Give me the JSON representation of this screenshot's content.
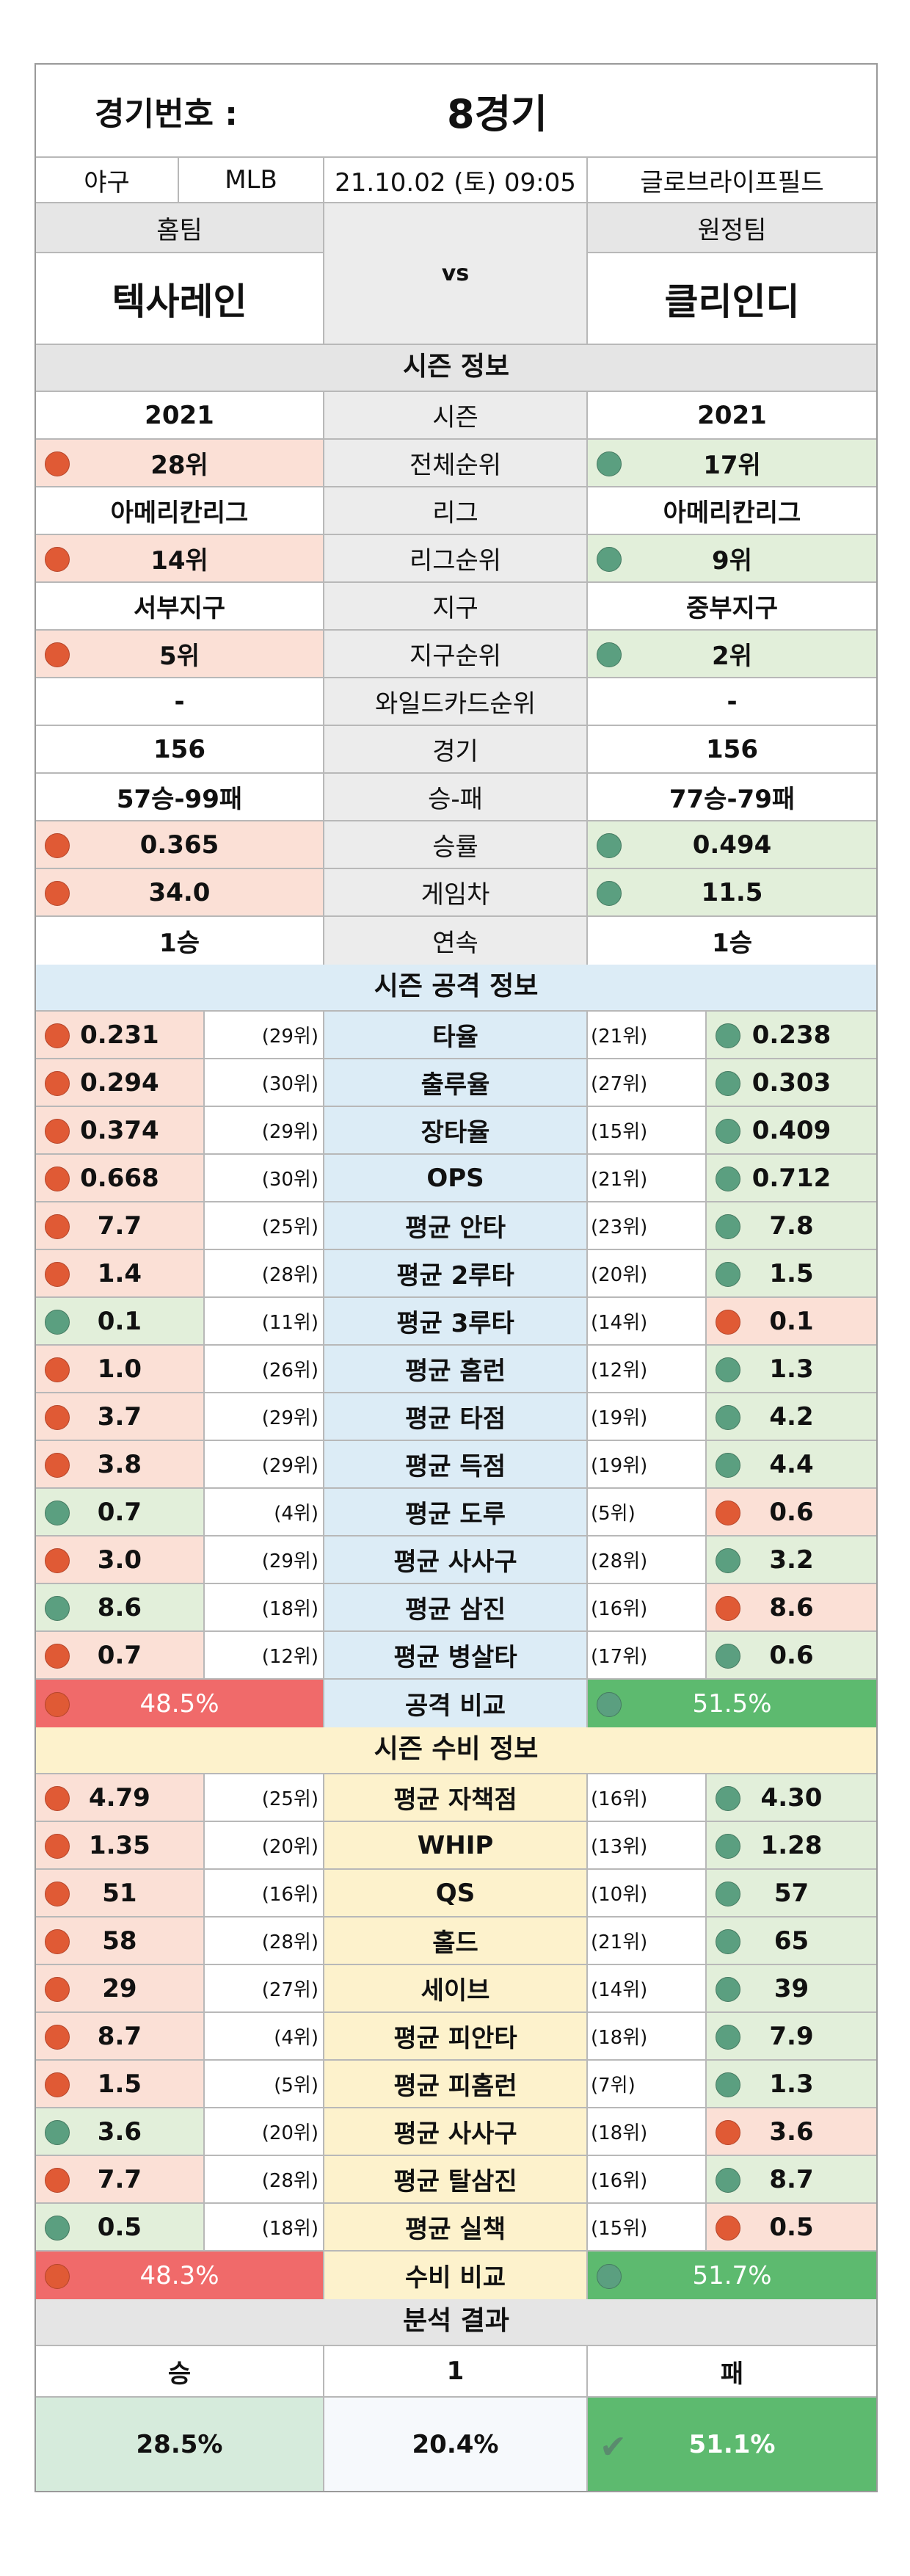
{
  "header": {
    "label": "경기번호 :",
    "game": "8경기"
  },
  "info": {
    "sport": "야구",
    "league": "MLB",
    "datetime": "21.10.02 (토) 09:05",
    "venue": "글로브라이프필드"
  },
  "teams": {
    "home_label": "홈팀",
    "away_label": "원정팀",
    "home": "텍사레인",
    "away": "클리인디",
    "vs": "vs"
  },
  "season": {
    "title": "시즌 정보",
    "rows": [
      {
        "label": "시즌",
        "home": "2021",
        "away": "2021",
        "style": "plain"
      },
      {
        "label": "전체순위",
        "home": "28위",
        "away": "17위",
        "style": "dot"
      },
      {
        "label": "리그",
        "home": "아메리칸리그",
        "away": "아메리칸리그",
        "style": "plain"
      },
      {
        "label": "리그순위",
        "home": "14위",
        "away": "9위",
        "style": "dot"
      },
      {
        "label": "지구",
        "home": "서부지구",
        "away": "중부지구",
        "style": "plain"
      },
      {
        "label": "지구순위",
        "home": "5위",
        "away": "2위",
        "style": "dot"
      },
      {
        "label": "와일드카드순위",
        "home": "-",
        "away": "-",
        "style": "plain"
      },
      {
        "label": "경기",
        "home": "156",
        "away": "156",
        "style": "plain"
      },
      {
        "label": "승-패",
        "home": "57승-99패",
        "away": "77승-79패",
        "style": "plain"
      },
      {
        "label": "승률",
        "home": "0.365",
        "away": "0.494",
        "style": "dot"
      },
      {
        "label": "게임차",
        "home": "34.0",
        "away": "11.5",
        "style": "dot"
      },
      {
        "label": "연속",
        "home": "1승",
        "away": "1승",
        "style": "plain"
      }
    ]
  },
  "offense": {
    "title": "시즌 공격 정보",
    "rows": [
      {
        "label": "타율",
        "home": "0.231",
        "home_rank": "(29위)",
        "away": "0.238",
        "away_rank": "(21위)",
        "home_good": false
      },
      {
        "label": "출루율",
        "home": "0.294",
        "home_rank": "(30위)",
        "away": "0.303",
        "away_rank": "(27위)",
        "home_good": false
      },
      {
        "label": "장타율",
        "home": "0.374",
        "home_rank": "(29위)",
        "away": "0.409",
        "away_rank": "(15위)",
        "home_good": false
      },
      {
        "label": "OPS",
        "home": "0.668",
        "home_rank": "(30위)",
        "away": "0.712",
        "away_rank": "(21위)",
        "home_good": false
      },
      {
        "label": "평균 안타",
        "home": "7.7",
        "home_rank": "(25위)",
        "away": "7.8",
        "away_rank": "(23위)",
        "home_good": false
      },
      {
        "label": "평균 2루타",
        "home": "1.4",
        "home_rank": "(28위)",
        "away": "1.5",
        "away_rank": "(20위)",
        "home_good": false
      },
      {
        "label": "평균 3루타",
        "home": "0.1",
        "home_rank": "(11위)",
        "away": "0.1",
        "away_rank": "(14위)",
        "home_good": true
      },
      {
        "label": "평균 홈런",
        "home": "1.0",
        "home_rank": "(26위)",
        "away": "1.3",
        "away_rank": "(12위)",
        "home_good": false
      },
      {
        "label": "평균 타점",
        "home": "3.7",
        "home_rank": "(29위)",
        "away": "4.2",
        "away_rank": "(19위)",
        "home_good": false
      },
      {
        "label": "평균 득점",
        "home": "3.8",
        "home_rank": "(29위)",
        "away": "4.4",
        "away_rank": "(19위)",
        "home_good": false
      },
      {
        "label": "평균 도루",
        "home": "0.7",
        "home_rank": "(4위)",
        "away": "0.6",
        "away_rank": "(5위)",
        "home_good": true
      },
      {
        "label": "평균 사사구",
        "home": "3.0",
        "home_rank": "(29위)",
        "away": "3.2",
        "away_rank": "(28위)",
        "home_good": false
      },
      {
        "label": "평균 삼진",
        "home": "8.6",
        "home_rank": "(18위)",
        "away": "8.6",
        "away_rank": "(16위)",
        "home_good": true
      },
      {
        "label": "평균 병살타",
        "home": "0.7",
        "home_rank": "(12위)",
        "away": "0.6",
        "away_rank": "(17위)",
        "home_good": false
      }
    ],
    "compare": {
      "label": "공격 비교",
      "home": "48.5%",
      "away": "51.5%"
    }
  },
  "defense": {
    "title": "시즌 수비 정보",
    "rows": [
      {
        "label": "평균 자책점",
        "home": "4.79",
        "home_rank": "(25위)",
        "away": "4.30",
        "away_rank": "(16위)",
        "home_good": false
      },
      {
        "label": "WHIP",
        "home": "1.35",
        "home_rank": "(20위)",
        "away": "1.28",
        "away_rank": "(13위)",
        "home_good": false
      },
      {
        "label": "QS",
        "home": "51",
        "home_rank": "(16위)",
        "away": "57",
        "away_rank": "(10위)",
        "home_good": false
      },
      {
        "label": "홀드",
        "home": "58",
        "home_rank": "(28위)",
        "away": "65",
        "away_rank": "(21위)",
        "home_good": false
      },
      {
        "label": "세이브",
        "home": "29",
        "home_rank": "(27위)",
        "away": "39",
        "away_rank": "(14위)",
        "home_good": false
      },
      {
        "label": "평균 피안타",
        "home": "8.7",
        "home_rank": "(4위)",
        "away": "7.9",
        "away_rank": "(18위)",
        "home_good": false
      },
      {
        "label": "평균 피홈런",
        "home": "1.5",
        "home_rank": "(5위)",
        "away": "1.3",
        "away_rank": "(7위)",
        "home_good": false
      },
      {
        "label": "평균 사사구",
        "home": "3.6",
        "home_rank": "(20위)",
        "away": "3.6",
        "away_rank": "(18위)",
        "home_good": true
      },
      {
        "label": "평균 탈삼진",
        "home": "7.7",
        "home_rank": "(28위)",
        "away": "8.7",
        "away_rank": "(16위)",
        "home_good": false
      },
      {
        "label": "평균 실책",
        "home": "0.5",
        "home_rank": "(18위)",
        "away": "0.5",
        "away_rank": "(15위)",
        "home_good": true
      }
    ],
    "compare": {
      "label": "수비 비교",
      "home": "48.3%",
      "away": "51.7%"
    }
  },
  "result": {
    "title": "분석 결과",
    "win_label": "승",
    "draw_label": "1",
    "lose_label": "패",
    "win": "28.5%",
    "draw": "20.4%",
    "lose": "51.1%"
  },
  "colors": {
    "bad": "#e05a35",
    "good": "#5b9f80",
    "home_cmp": "#f06a6a",
    "away_cmp": "#5dba6f"
  }
}
